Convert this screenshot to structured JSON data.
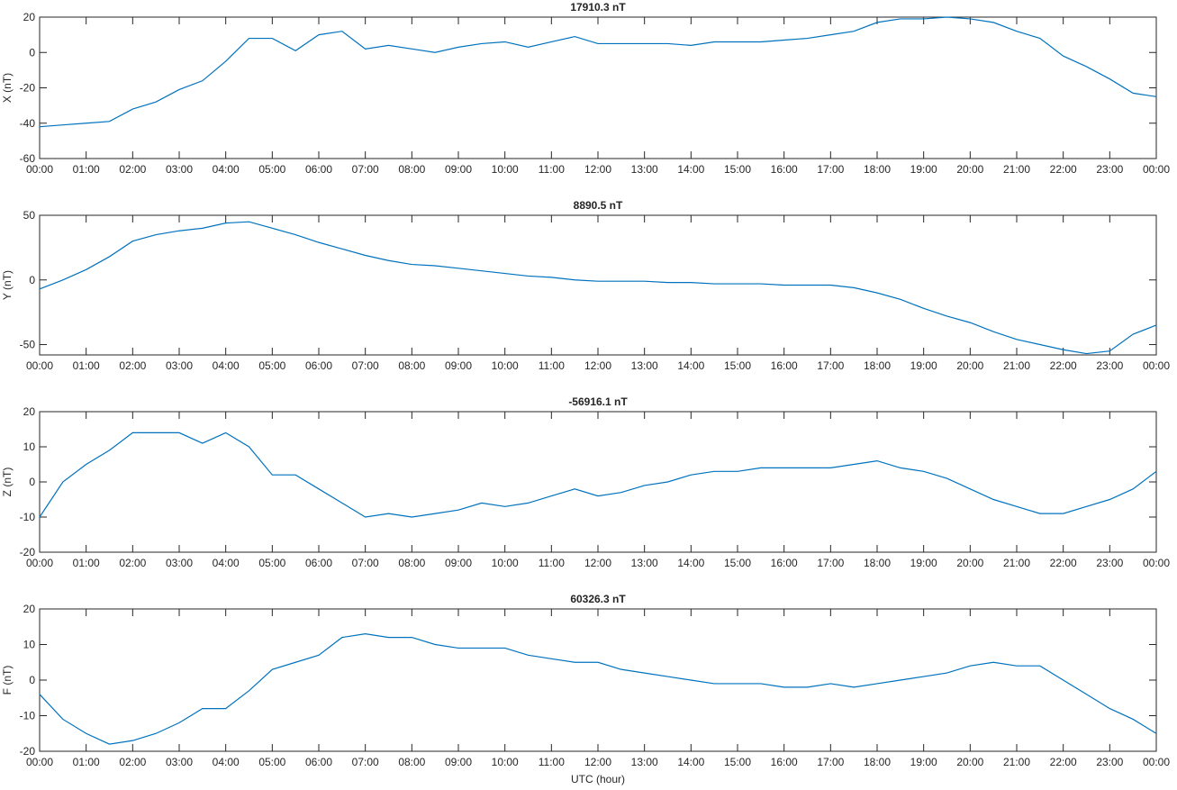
{
  "chart_data": [
    {
      "type": "line",
      "title": "17910.3 nT",
      "ylabel": "X (nT)",
      "x": [
        0,
        0.5,
        1,
        1.5,
        2,
        2.5,
        3,
        3.5,
        4,
        4.5,
        5,
        5.5,
        6,
        6.5,
        7,
        7.5,
        8,
        8.5,
        9,
        9.5,
        10,
        10.5,
        11,
        11.5,
        12,
        12.5,
        13,
        13.5,
        14,
        14.5,
        15,
        15.5,
        16,
        16.5,
        17,
        17.5,
        18,
        18.5,
        19,
        19.5,
        20,
        20.5,
        21,
        21.5,
        22,
        22.5,
        23,
        23.5,
        24
      ],
      "xlim": [
        0,
        24
      ],
      "xticks": [
        {
          "value": 0,
          "label": "00:00"
        },
        {
          "value": 1,
          "label": "01:00"
        },
        {
          "value": 2,
          "label": "02:00"
        },
        {
          "value": 3,
          "label": "03:00"
        },
        {
          "value": 4,
          "label": "04:00"
        },
        {
          "value": 5,
          "label": "05:00"
        },
        {
          "value": 6,
          "label": "06:00"
        },
        {
          "value": 7,
          "label": "07:00"
        },
        {
          "value": 8,
          "label": "08:00"
        },
        {
          "value": 9,
          "label": "09:00"
        },
        {
          "value": 10,
          "label": "10:00"
        },
        {
          "value": 11,
          "label": "11:00"
        },
        {
          "value": 12,
          "label": "12:00"
        },
        {
          "value": 13,
          "label": "13:00"
        },
        {
          "value": 14,
          "label": "14:00"
        },
        {
          "value": 15,
          "label": "15:00"
        },
        {
          "value": 16,
          "label": "16:00"
        },
        {
          "value": 17,
          "label": "17:00"
        },
        {
          "value": 18,
          "label": "18:00"
        },
        {
          "value": 19,
          "label": "19:00"
        },
        {
          "value": 20,
          "label": "20:00"
        },
        {
          "value": 21,
          "label": "21:00"
        },
        {
          "value": 22,
          "label": "22:00"
        },
        {
          "value": 23,
          "label": "23:00"
        },
        {
          "value": 24,
          "label": "00:00"
        }
      ],
      "ylim": [
        -60,
        20
      ],
      "yticks": [
        -60,
        -40,
        -20,
        0,
        20
      ],
      "series": [
        {
          "color": "#0072bd",
          "values": [
            -42,
            -41,
            -40,
            -39,
            -32,
            -28,
            -21,
            -16,
            -5,
            8,
            8,
            1,
            10,
            12,
            2,
            4,
            2,
            0,
            3,
            5,
            6,
            3,
            6,
            9,
            5,
            5,
            5,
            5,
            4,
            6,
            6,
            6,
            7,
            8,
            10,
            12,
            17,
            19,
            19,
            20,
            19,
            17,
            12,
            8,
            -2,
            -8,
            -15,
            -23,
            -25
          ]
        }
      ]
    },
    {
      "type": "line",
      "title": "8890.5 nT",
      "ylabel": "Y (nT)",
      "x": [
        0,
        0.5,
        1,
        1.5,
        2,
        2.5,
        3,
        3.5,
        4,
        4.5,
        5,
        5.5,
        6,
        6.5,
        7,
        7.5,
        8,
        8.5,
        9,
        9.5,
        10,
        10.5,
        11,
        11.5,
        12,
        12.5,
        13,
        13.5,
        14,
        14.5,
        15,
        15.5,
        16,
        16.5,
        17,
        17.5,
        18,
        18.5,
        19,
        19.5,
        20,
        20.5,
        21,
        21.5,
        22,
        22.5,
        23,
        23.5,
        24
      ],
      "xlim": [
        0,
        24
      ],
      "xticks": [
        {
          "value": 0,
          "label": "00:00"
        },
        {
          "value": 1,
          "label": "01:00"
        },
        {
          "value": 2,
          "label": "02:00"
        },
        {
          "value": 3,
          "label": "03:00"
        },
        {
          "value": 4,
          "label": "04:00"
        },
        {
          "value": 5,
          "label": "05:00"
        },
        {
          "value": 6,
          "label": "06:00"
        },
        {
          "value": 7,
          "label": "07:00"
        },
        {
          "value": 8,
          "label": "08:00"
        },
        {
          "value": 9,
          "label": "09:00"
        },
        {
          "value": 10,
          "label": "10:00"
        },
        {
          "value": 11,
          "label": "11:00"
        },
        {
          "value": 12,
          "label": "12:00"
        },
        {
          "value": 13,
          "label": "13:00"
        },
        {
          "value": 14,
          "label": "14:00"
        },
        {
          "value": 15,
          "label": "15:00"
        },
        {
          "value": 16,
          "label": "16:00"
        },
        {
          "value": 17,
          "label": "17:00"
        },
        {
          "value": 18,
          "label": "18:00"
        },
        {
          "value": 19,
          "label": "19:00"
        },
        {
          "value": 20,
          "label": "20:00"
        },
        {
          "value": 21,
          "label": "21:00"
        },
        {
          "value": 22,
          "label": "22:00"
        },
        {
          "value": 23,
          "label": "23:00"
        },
        {
          "value": 24,
          "label": "00:00"
        }
      ],
      "ylim": [
        -58,
        50
      ],
      "yticks": [
        -50,
        0,
        50
      ],
      "series": [
        {
          "color": "#0072bd",
          "values": [
            -7,
            0,
            8,
            18,
            30,
            35,
            38,
            40,
            44,
            45,
            40,
            35,
            29,
            24,
            19,
            15,
            12,
            11,
            9,
            7,
            5,
            3,
            2,
            0,
            -1,
            -1,
            -1,
            -2,
            -2,
            -3,
            -3,
            -3,
            -4,
            -4,
            -4,
            -6,
            -10,
            -15,
            -22,
            -28,
            -33,
            -40,
            -46,
            -50,
            -54,
            -57,
            -55,
            -42,
            -35
          ]
        }
      ]
    },
    {
      "type": "line",
      "title": "-56916.1 nT",
      "ylabel": "Z (nT)",
      "x": [
        0,
        0.5,
        1,
        1.5,
        2,
        2.5,
        3,
        3.5,
        4,
        4.5,
        5,
        5.5,
        6,
        6.5,
        7,
        7.5,
        8,
        8.5,
        9,
        9.5,
        10,
        10.5,
        11,
        11.5,
        12,
        12.5,
        13,
        13.5,
        14,
        14.5,
        15,
        15.5,
        16,
        16.5,
        17,
        17.5,
        18,
        18.5,
        19,
        19.5,
        20,
        20.5,
        21,
        21.5,
        22,
        22.5,
        23,
        23.5,
        24
      ],
      "xlim": [
        0,
        24
      ],
      "xticks": [
        {
          "value": 0,
          "label": "00:00"
        },
        {
          "value": 1,
          "label": "01:00"
        },
        {
          "value": 2,
          "label": "02:00"
        },
        {
          "value": 3,
          "label": "03:00"
        },
        {
          "value": 4,
          "label": "04:00"
        },
        {
          "value": 5,
          "label": "05:00"
        },
        {
          "value": 6,
          "label": "06:00"
        },
        {
          "value": 7,
          "label": "07:00"
        },
        {
          "value": 8,
          "label": "08:00"
        },
        {
          "value": 9,
          "label": "09:00"
        },
        {
          "value": 10,
          "label": "10:00"
        },
        {
          "value": 11,
          "label": "11:00"
        },
        {
          "value": 12,
          "label": "12:00"
        },
        {
          "value": 13,
          "label": "13:00"
        },
        {
          "value": 14,
          "label": "14:00"
        },
        {
          "value": 15,
          "label": "15:00"
        },
        {
          "value": 16,
          "label": "16:00"
        },
        {
          "value": 17,
          "label": "17:00"
        },
        {
          "value": 18,
          "label": "18:00"
        },
        {
          "value": 19,
          "label": "19:00"
        },
        {
          "value": 20,
          "label": "20:00"
        },
        {
          "value": 21,
          "label": "21:00"
        },
        {
          "value": 22,
          "label": "22:00"
        },
        {
          "value": 23,
          "label": "23:00"
        },
        {
          "value": 24,
          "label": "00:00"
        }
      ],
      "ylim": [
        -20,
        20
      ],
      "yticks": [
        -20,
        -10,
        0,
        10,
        20
      ],
      "series": [
        {
          "color": "#0072bd",
          "values": [
            -10,
            0,
            5,
            9,
            14,
            14,
            14,
            11,
            14,
            10,
            2,
            2,
            -2,
            -6,
            -10,
            -9,
            -10,
            -9,
            -8,
            -6,
            -7,
            -6,
            -4,
            -2,
            -4,
            -3,
            -1,
            0,
            2,
            3,
            3,
            4,
            4,
            4,
            4,
            5,
            6,
            4,
            3,
            1,
            -2,
            -5,
            -7,
            -9,
            -9,
            -7,
            -5,
            -2,
            3
          ]
        }
      ]
    },
    {
      "type": "line",
      "title": "60326.3 nT",
      "ylabel": "F (nT)",
      "xlabel": "UTC (hour)",
      "x": [
        0,
        0.5,
        1,
        1.5,
        2,
        2.5,
        3,
        3.5,
        4,
        4.5,
        5,
        5.5,
        6,
        6.5,
        7,
        7.5,
        8,
        8.5,
        9,
        9.5,
        10,
        10.5,
        11,
        11.5,
        12,
        12.5,
        13,
        13.5,
        14,
        14.5,
        15,
        15.5,
        16,
        16.5,
        17,
        17.5,
        18,
        18.5,
        19,
        19.5,
        20,
        20.5,
        21,
        21.5,
        22,
        22.5,
        23,
        23.5,
        24
      ],
      "xlim": [
        0,
        24
      ],
      "xticks": [
        {
          "value": 0,
          "label": "00:00"
        },
        {
          "value": 1,
          "label": "01:00"
        },
        {
          "value": 2,
          "label": "02:00"
        },
        {
          "value": 3,
          "label": "03:00"
        },
        {
          "value": 4,
          "label": "04:00"
        },
        {
          "value": 5,
          "label": "05:00"
        },
        {
          "value": 6,
          "label": "06:00"
        },
        {
          "value": 7,
          "label": "07:00"
        },
        {
          "value": 8,
          "label": "08:00"
        },
        {
          "value": 9,
          "label": "09:00"
        },
        {
          "value": 10,
          "label": "10:00"
        },
        {
          "value": 11,
          "label": "11:00"
        },
        {
          "value": 12,
          "label": "12:00"
        },
        {
          "value": 13,
          "label": "13:00"
        },
        {
          "value": 14,
          "label": "14:00"
        },
        {
          "value": 15,
          "label": "15:00"
        },
        {
          "value": 16,
          "label": "16:00"
        },
        {
          "value": 17,
          "label": "17:00"
        },
        {
          "value": 18,
          "label": "18:00"
        },
        {
          "value": 19,
          "label": "19:00"
        },
        {
          "value": 20,
          "label": "20:00"
        },
        {
          "value": 21,
          "label": "21:00"
        },
        {
          "value": 22,
          "label": "22:00"
        },
        {
          "value": 23,
          "label": "23:00"
        },
        {
          "value": 24,
          "label": "00:00"
        }
      ],
      "ylim": [
        -20,
        20
      ],
      "yticks": [
        -20,
        -10,
        0,
        10,
        20
      ],
      "series": [
        {
          "color": "#0072bd",
          "values": [
            -4,
            -11,
            -15,
            -18,
            -17,
            -15,
            -12,
            -8,
            -8,
            -3,
            3,
            5,
            7,
            12,
            13,
            12,
            12,
            10,
            9,
            9,
            9,
            7,
            6,
            5,
            5,
            3,
            2,
            1,
            0,
            -1,
            -1,
            -1,
            -2,
            -2,
            -1,
            -2,
            -1,
            0,
            1,
            2,
            4,
            5,
            4,
            4,
            0,
            -4,
            -8,
            -11,
            -15
          ]
        }
      ]
    }
  ]
}
